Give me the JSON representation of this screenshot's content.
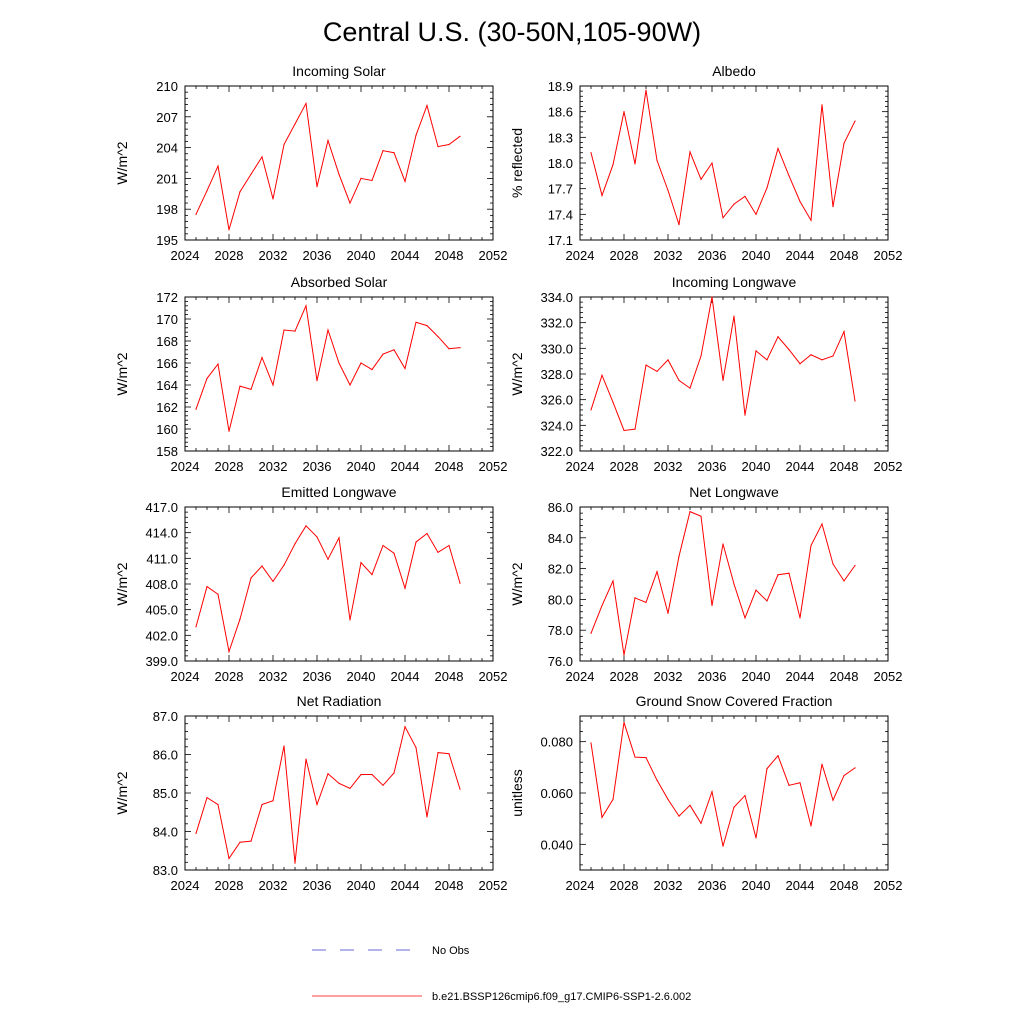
{
  "title": "Central U.S. (30-50N,105-90W)",
  "line_color": "#ff0000",
  "obs_color": "#3a3ad0",
  "legend": {
    "obs_label": "No Obs",
    "model_label": "b.e21.BSSP126cmip6.f09_g17.CMIP6-SSP1-2.6.002"
  },
  "chart_data": [
    {
      "type": "line",
      "title": "Incoming Solar",
      "ylabel": "W/m^2",
      "xlim": [
        2024,
        2052
      ],
      "ylim": [
        195,
        210
      ],
      "x_ticks": [
        2024,
        2028,
        2032,
        2036,
        2040,
        2044,
        2048,
        2052
      ],
      "y_ticks": [
        "195",
        "198",
        "201",
        "204",
        "207",
        "210"
      ],
      "x": [
        2025,
        2026,
        2027,
        2028,
        2029,
        2030,
        2031,
        2032,
        2033,
        2034,
        2035,
        2036,
        2037,
        2038,
        2039,
        2040,
        2041,
        2042,
        2043,
        2044,
        2045,
        2046,
        2047,
        2048,
        2049
      ],
      "values": [
        197.5,
        199.8,
        202.2,
        196.0,
        199.7,
        201.4,
        203.1,
        199.0,
        204.3,
        206.3,
        208.3,
        200.2,
        204.7,
        201.4,
        198.6,
        201.0,
        200.8,
        203.7,
        203.5,
        200.7,
        205.2,
        208.1,
        204.1,
        204.3,
        205.1
      ]
    },
    {
      "type": "line",
      "title": "Albedo",
      "ylabel": "% reflected",
      "xlim": [
        2024,
        2052
      ],
      "ylim": [
        17.1,
        18.9
      ],
      "x_ticks": [
        2024,
        2028,
        2032,
        2036,
        2040,
        2044,
        2048,
        2052
      ],
      "y_ticks": [
        "17.1",
        "17.4",
        "17.7",
        "18.0",
        "18.3",
        "18.6",
        "18.9"
      ],
      "x": [
        2025,
        2026,
        2027,
        2028,
        2029,
        2030,
        2031,
        2032,
        2033,
        2034,
        2035,
        2036,
        2037,
        2038,
        2039,
        2040,
        2041,
        2042,
        2043,
        2044,
        2045,
        2046,
        2047,
        2048,
        2049
      ],
      "values": [
        18.12,
        17.62,
        17.98,
        18.6,
        17.99,
        18.85,
        18.03,
        17.68,
        17.28,
        18.13,
        17.81,
        18.0,
        17.36,
        17.52,
        17.61,
        17.4,
        17.71,
        18.17,
        17.85,
        17.55,
        17.33,
        18.68,
        17.49,
        18.23,
        18.49
      ]
    },
    {
      "type": "line",
      "title": "Absorbed Solar",
      "ylabel": "W/m^2",
      "xlim": [
        2024,
        2052
      ],
      "ylim": [
        158,
        172
      ],
      "x_ticks": [
        2024,
        2028,
        2032,
        2036,
        2040,
        2044,
        2048,
        2052
      ],
      "y_ticks": [
        "158",
        "160",
        "162",
        "164",
        "166",
        "168",
        "170",
        "172"
      ],
      "x": [
        2025,
        2026,
        2027,
        2028,
        2029,
        2030,
        2031,
        2032,
        2033,
        2034,
        2035,
        2036,
        2037,
        2038,
        2039,
        2040,
        2041,
        2042,
        2043,
        2044,
        2045,
        2046,
        2047,
        2048,
        2049
      ],
      "values": [
        161.8,
        164.6,
        165.9,
        159.8,
        163.9,
        163.6,
        166.5,
        164.0,
        169.0,
        168.9,
        171.2,
        164.4,
        169.0,
        166.0,
        164.0,
        166.0,
        165.4,
        166.8,
        167.2,
        165.5,
        169.7,
        169.4,
        168.4,
        167.3,
        167.4
      ]
    },
    {
      "type": "line",
      "title": "Incoming Longwave",
      "ylabel": "W/m^2",
      "xlim": [
        2024,
        2052
      ],
      "ylim": [
        322,
        334
      ],
      "x_ticks": [
        2024,
        2028,
        2032,
        2036,
        2040,
        2044,
        2048,
        2052
      ],
      "y_ticks": [
        "322.0",
        "324.0",
        "326.0",
        "328.0",
        "330.0",
        "332.0",
        "334.0"
      ],
      "x": [
        2025,
        2026,
        2027,
        2028,
        2029,
        2030,
        2031,
        2032,
        2033,
        2034,
        2035,
        2036,
        2037,
        2038,
        2039,
        2040,
        2041,
        2042,
        2043,
        2044,
        2045,
        2046,
        2047,
        2048,
        2049
      ],
      "values": [
        325.2,
        327.9,
        325.8,
        323.6,
        323.7,
        328.7,
        328.2,
        329.1,
        327.5,
        326.9,
        329.4,
        334.0,
        327.5,
        332.5,
        324.8,
        329.8,
        329.1,
        330.9,
        329.9,
        328.8,
        329.5,
        329.1,
        329.4,
        331.3,
        325.9
      ]
    },
    {
      "type": "line",
      "title": "Emitted Longwave",
      "ylabel": "W/m^2",
      "xlim": [
        2024,
        2052
      ],
      "ylim": [
        399,
        417
      ],
      "x_ticks": [
        2024,
        2028,
        2032,
        2036,
        2040,
        2044,
        2048,
        2052
      ],
      "y_ticks": [
        "399.0",
        "402.0",
        "405.0",
        "408.0",
        "411.0",
        "414.0",
        "417.0"
      ],
      "x": [
        2025,
        2026,
        2027,
        2028,
        2029,
        2030,
        2031,
        2032,
        2033,
        2034,
        2035,
        2036,
        2037,
        2038,
        2039,
        2040,
        2041,
        2042,
        2043,
        2044,
        2045,
        2046,
        2047,
        2048,
        2049
      ],
      "values": [
        403.0,
        407.7,
        406.8,
        400.1,
        403.9,
        408.7,
        410.1,
        408.3,
        410.2,
        412.7,
        414.8,
        413.5,
        410.9,
        413.4,
        403.8,
        410.5,
        409.1,
        412.5,
        411.6,
        407.5,
        412.9,
        413.9,
        411.7,
        412.5,
        408.1
      ]
    },
    {
      "type": "line",
      "title": "Net Longwave",
      "ylabel": "W/m^2",
      "xlim": [
        2024,
        2052
      ],
      "ylim": [
        76,
        86
      ],
      "x_ticks": [
        2024,
        2028,
        2032,
        2036,
        2040,
        2044,
        2048,
        2052
      ],
      "y_ticks": [
        "76.0",
        "78.0",
        "80.0",
        "82.0",
        "84.0",
        "86.0"
      ],
      "x": [
        2025,
        2026,
        2027,
        2028,
        2029,
        2030,
        2031,
        2032,
        2033,
        2034,
        2035,
        2036,
        2037,
        2038,
        2039,
        2040,
        2041,
        2042,
        2043,
        2044,
        2045,
        2046,
        2047,
        2048,
        2049
      ],
      "values": [
        77.8,
        79.6,
        81.2,
        76.4,
        80.1,
        79.8,
        81.8,
        79.1,
        82.8,
        85.7,
        85.4,
        79.6,
        83.6,
        81.0,
        78.8,
        80.6,
        79.9,
        81.6,
        81.7,
        78.8,
        83.5,
        84.9,
        82.3,
        81.2,
        82.2
      ]
    },
    {
      "type": "line",
      "title": "Net Radiation",
      "ylabel": "W/m^2",
      "xlim": [
        2024,
        2052
      ],
      "ylim": [
        83,
        87
      ],
      "x_ticks": [
        2024,
        2028,
        2032,
        2036,
        2040,
        2044,
        2048,
        2052
      ],
      "y_ticks": [
        "83.0",
        "84.0",
        "85.0",
        "86.0",
        "87.0"
      ],
      "x": [
        2025,
        2026,
        2027,
        2028,
        2029,
        2030,
        2031,
        2032,
        2033,
        2034,
        2035,
        2036,
        2037,
        2038,
        2039,
        2040,
        2041,
        2042,
        2043,
        2044,
        2045,
        2046,
        2047,
        2048,
        2049
      ],
      "values": [
        83.95,
        84.88,
        84.7,
        83.3,
        83.72,
        83.75,
        84.7,
        84.8,
        86.22,
        83.18,
        85.88,
        84.7,
        85.5,
        85.25,
        85.12,
        85.48,
        85.48,
        85.2,
        85.52,
        86.72,
        86.18,
        84.38,
        86.05,
        86.02,
        85.1
      ]
    },
    {
      "type": "line",
      "title": "Ground Snow Covered Fraction",
      "ylabel": "unitless",
      "xlim": [
        2024,
        2052
      ],
      "ylim": [
        0.03,
        0.09
      ],
      "x_ticks": [
        2024,
        2028,
        2032,
        2036,
        2040,
        2044,
        2048,
        2052
      ],
      "y_ticks": [
        "0.040",
        "0.060",
        "0.080"
      ],
      "y_tick_values": [
        0.04,
        0.06,
        0.08
      ],
      "x": [
        2025,
        2026,
        2027,
        2028,
        2029,
        2030,
        2031,
        2032,
        2033,
        2034,
        2035,
        2036,
        2037,
        2038,
        2039,
        2040,
        2041,
        2042,
        2043,
        2044,
        2045,
        2046,
        2047,
        2048,
        2049
      ],
      "values": [
        0.0795,
        0.0505,
        0.0575,
        0.0875,
        0.074,
        0.0738,
        0.065,
        0.0575,
        0.051,
        0.0552,
        0.0482,
        0.0605,
        0.0393,
        0.0545,
        0.059,
        0.0425,
        0.0695,
        0.0745,
        0.063,
        0.064,
        0.0472,
        0.0712,
        0.0572,
        0.0668,
        0.0698
      ]
    }
  ]
}
